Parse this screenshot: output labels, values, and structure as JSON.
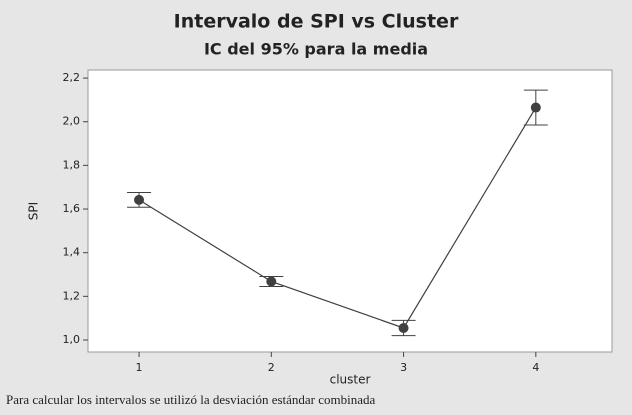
{
  "chart_data": {
    "type": "interval",
    "title": "Intervalo de SPI vs Cluster",
    "subtitle": "IC del 95% para la media",
    "x_label": "cluster",
    "y_label": "SPI",
    "footnote": "Para calcular los intervalos se utilizó la desviación estándar combinada",
    "x": [
      1,
      2,
      3,
      4
    ],
    "series": [
      {
        "color": "#404040",
        "values": [
          1.642,
          1.268,
          1.055,
          2.065
        ],
        "errors": [
          0.034,
          0.023,
          0.035,
          0.08
        ]
      }
    ],
    "xlim": [
      0.614,
      4.576
    ],
    "xticks": [
      1,
      2,
      3,
      4
    ],
    "ylim": [
      0.945,
      2.237
    ],
    "yticks": [
      {
        "value": 1.0,
        "label": "1,0"
      },
      {
        "value": 1.2,
        "label": "1,2"
      },
      {
        "value": 1.4,
        "label": "1,4"
      },
      {
        "value": 1.6,
        "label": "1,6"
      },
      {
        "value": 1.8,
        "label": "1,8"
      },
      {
        "value": 2.0,
        "label": "2,0"
      },
      {
        "value": 2.2,
        "label": "2,2"
      }
    ]
  }
}
